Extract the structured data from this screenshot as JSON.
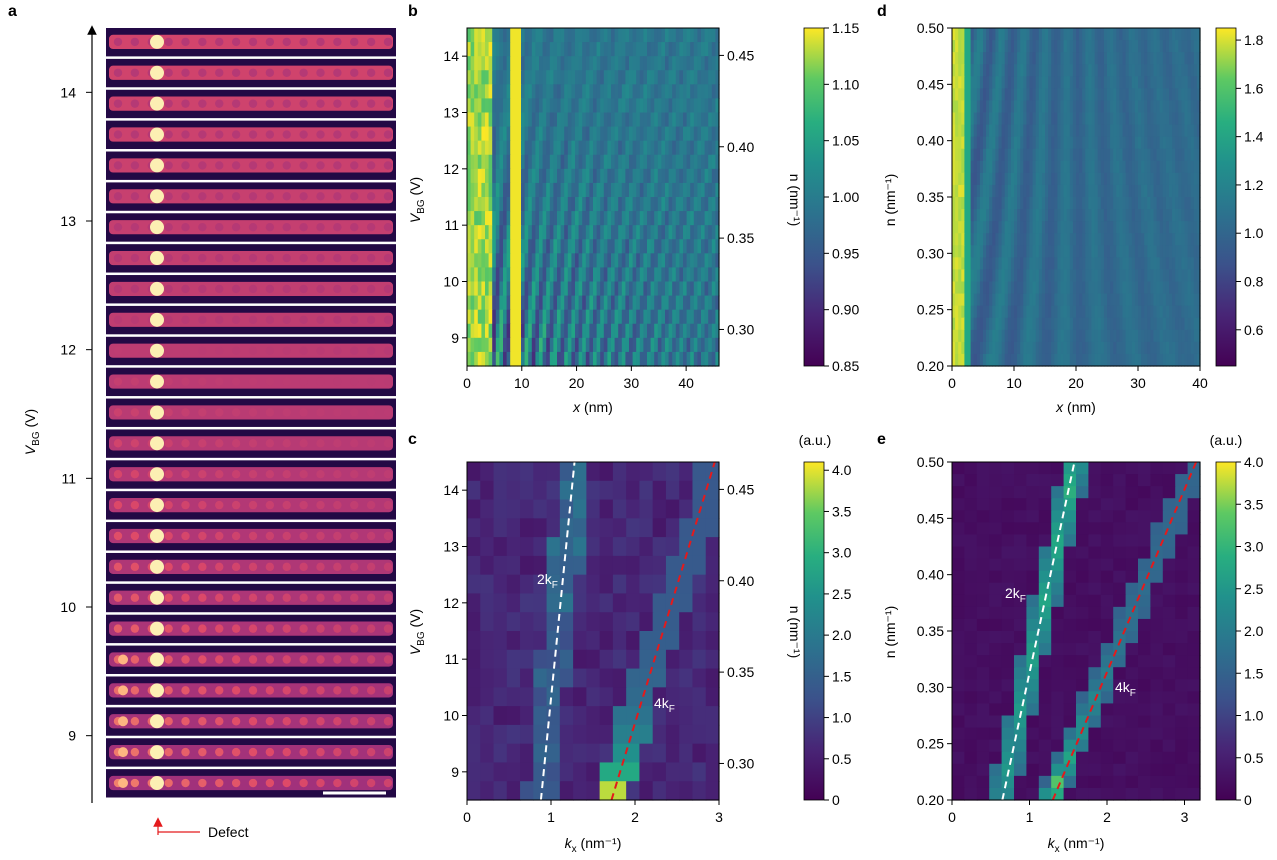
{
  "panels": {
    "a": {
      "letter": "a",
      "ylabel_main": "V",
      "ylabel_sub": "BG",
      "ylabel_unit": " (V)",
      "yticks": [
        "14",
        "13",
        "12",
        "11",
        "10",
        "9"
      ],
      "defect_label": "Defect"
    },
    "b": {
      "letter": "b",
      "ylabel_main": "V",
      "ylabel_sub": "BG",
      "ylabel_unit": " (V)",
      "xlabel_main": "x",
      "xlabel_unit": " (nm)",
      "ylabel2": "n (nm⁻¹)",
      "xticks": [
        "0",
        "10",
        "20",
        "30",
        "40"
      ],
      "yticks": [
        "9",
        "10",
        "11",
        "12",
        "13",
        "14"
      ],
      "y2ticks": [
        "0.30",
        "0.35",
        "0.40",
        "0.45"
      ],
      "cbar_ticks": [
        "0.85",
        "0.90",
        "0.95",
        "1.00",
        "1.05",
        "1.10",
        "1.15"
      ]
    },
    "c": {
      "letter": "c",
      "ylabel_main": "V",
      "ylabel_sub": "BG",
      "ylabel_unit": " (V)",
      "xlabel_main": "k",
      "xlabel_sub": "x",
      "xlabel_unit": " (nm⁻¹)",
      "ylabel2": "n (nm⁻¹)",
      "xticks": [
        "0",
        "1",
        "2",
        "3"
      ],
      "yticks": [
        "9",
        "10",
        "11",
        "12",
        "13",
        "14"
      ],
      "y2ticks": [
        "0.30",
        "0.35",
        "0.40",
        "0.45"
      ],
      "cbar_unit": "(a.u.)",
      "cbar_ticks": [
        "0",
        "0.5",
        "1.0",
        "1.5",
        "2.0",
        "2.5",
        "3.0",
        "3.5",
        "4.0"
      ],
      "label_2kf": "2k",
      "label_4kf": "4k",
      "label_sub": "F"
    },
    "d": {
      "letter": "d",
      "xlabel_main": "x",
      "xlabel_unit": " (nm)",
      "ylabel": "n (nm⁻¹)",
      "xticks": [
        "0",
        "10",
        "20",
        "30",
        "40"
      ],
      "yticks": [
        "0.20",
        "0.25",
        "0.30",
        "0.35",
        "0.40",
        "0.45",
        "0.50"
      ],
      "cbar_ticks": [
        "0.6",
        "0.8",
        "1.0",
        "1.2",
        "1.4",
        "1.6",
        "1.8"
      ]
    },
    "e": {
      "letter": "e",
      "xlabel_main": "k",
      "xlabel_sub": "x",
      "xlabel_unit": " (nm⁻¹)",
      "ylabel": "n (nm⁻¹)",
      "xticks": [
        "0",
        "1",
        "2",
        "3"
      ],
      "yticks": [
        "0.20",
        "0.25",
        "0.30",
        "0.35",
        "0.40",
        "0.45",
        "0.50"
      ],
      "cbar_unit": "(a.u.)",
      "cbar_ticks": [
        "0",
        "0.5",
        "1.0",
        "1.5",
        "2.0",
        "2.5",
        "3.0",
        "3.5",
        "4.0"
      ],
      "label_2kf": "2k",
      "label_4kf": "4k",
      "label_sub": "F"
    }
  },
  "chart_data": [
    {
      "panel": "a",
      "type": "heatmap",
      "description_source": "STM image strips",
      "y_range": [
        8.5,
        14.5
      ],
      "strip_count": 25,
      "colormap": "magma"
    },
    {
      "panel": "b",
      "type": "heatmap",
      "x_range": [
        0,
        46
      ],
      "y_range": [
        8.5,
        14.5
      ],
      "y2_range": [
        0.28,
        0.46
      ],
      "color_range": [
        0.85,
        1.15
      ],
      "colormap": "viridis"
    },
    {
      "panel": "c",
      "type": "heatmap",
      "x_range": [
        0,
        3
      ],
      "y_range": [
        8.5,
        14.5
      ],
      "y2_range": [
        0.28,
        0.46
      ],
      "color_range": [
        0,
        4.1
      ],
      "colormap": "viridis",
      "series": [
        {
          "name": "2kF",
          "style": "white dashed",
          "x": [
            0.88,
            1.28
          ],
          "y": [
            8.5,
            14.5
          ]
        },
        {
          "name": "4kF",
          "style": "red dashed",
          "x": [
            1.72,
            2.95
          ],
          "y": [
            8.5,
            14.5
          ]
        }
      ]
    },
    {
      "panel": "d",
      "type": "heatmap",
      "x_range": [
        0,
        40
      ],
      "y_range": [
        0.2,
        0.5
      ],
      "color_range": [
        0.45,
        1.85
      ],
      "colormap": "viridis"
    },
    {
      "panel": "e",
      "type": "heatmap",
      "x_range": [
        0,
        3.2
      ],
      "y_range": [
        0.2,
        0.5
      ],
      "color_range": [
        0,
        4.0
      ],
      "colormap": "viridis",
      "series": [
        {
          "name": "2kF",
          "style": "white dashed",
          "x": [
            0.65,
            1.58
          ],
          "y": [
            0.2,
            0.5
          ]
        },
        {
          "name": "4kF",
          "style": "red dashed",
          "x": [
            1.3,
            3.15
          ],
          "y": [
            0.2,
            0.5
          ]
        }
      ]
    }
  ]
}
